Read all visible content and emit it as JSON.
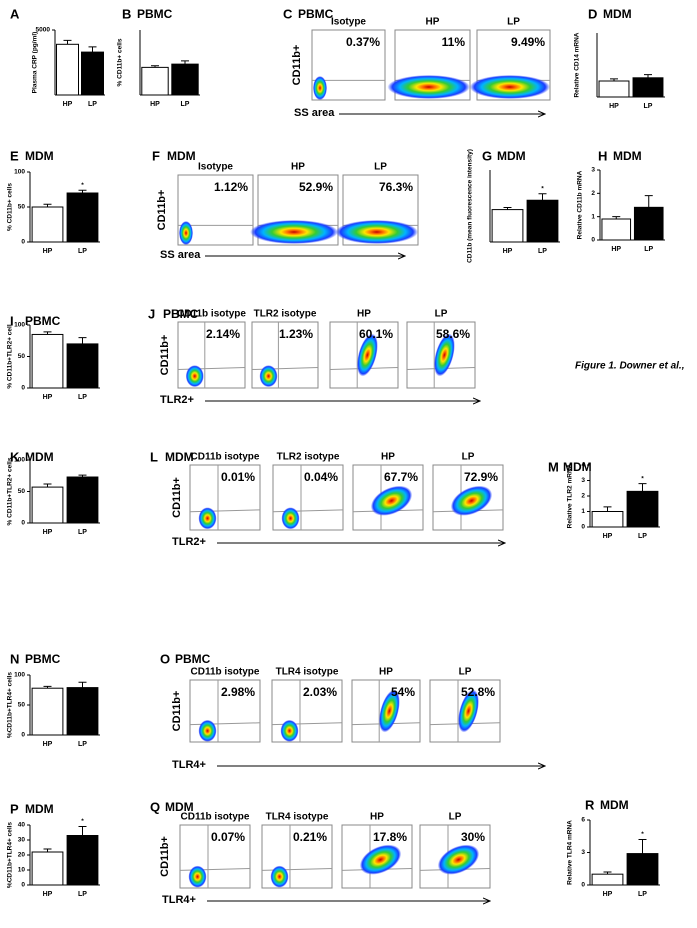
{
  "chart_data": [
    {
      "type": "bar",
      "letter": "A",
      "y_label": "Plasma CRP (pg/ml)",
      "categories": [
        "HP",
        "LP"
      ],
      "values": [
        3900,
        3300
      ],
      "errors": [
        300,
        400
      ],
      "colors": [
        "#ffffff",
        "#000000"
      ],
      "ylim": [
        0,
        5000
      ],
      "yticks": [
        5000
      ]
    },
    {
      "type": "bar",
      "letter": "B",
      "title": "PBMC",
      "y_label": "% CD11b+ cells",
      "categories": [
        "HP",
        "LP"
      ],
      "values": [
        17,
        19
      ],
      "errors": [
        1,
        2
      ],
      "colors": [
        "#ffffff",
        "#000000"
      ],
      "ylim": [
        0,
        40
      ]
    },
    {
      "type": "bar",
      "letter": "D",
      "title": "MDM",
      "y_label": "Relative CD14 mRNA",
      "categories": [
        "HP",
        "LP"
      ],
      "values": [
        1.5,
        1.8
      ],
      "errors": [
        0.2,
        0.3
      ],
      "colors": [
        "#ffffff",
        "#000000"
      ],
      "ylim": [
        0,
        6
      ]
    },
    {
      "type": "bar",
      "letter": "E",
      "title": "MDM",
      "y_label": "% CD11b+ cells",
      "categories": [
        "HP",
        "LP"
      ],
      "values": [
        50,
        70
      ],
      "errors": [
        4,
        4
      ],
      "colors": [
        "#ffffff",
        "#000000"
      ],
      "ylim": [
        0,
        100
      ],
      "yticks": [
        0,
        50,
        100
      ],
      "annotation": "*"
    },
    {
      "type": "bar",
      "letter": "G",
      "title": "MDM",
      "y_label": "CD11b (mean fluorescence intensity)",
      "categories": [
        "HP",
        "LP"
      ],
      "values": [
        45,
        58
      ],
      "errors": [
        3,
        9
      ],
      "colors": [
        "#ffffff",
        "#000000"
      ],
      "ylim": [
        0,
        100
      ],
      "annotation": "*"
    },
    {
      "type": "bar",
      "letter": "H",
      "title": "MDM",
      "y_label": "Relative CD11b mRNA",
      "categories": [
        "HP",
        "LP"
      ],
      "values": [
        0.9,
        1.4
      ],
      "errors": [
        0.1,
        0.5
      ],
      "colors": [
        "#ffffff",
        "#000000"
      ],
      "ylim": [
        0,
        3
      ],
      "yticks": [
        0,
        1,
        2,
        3
      ]
    },
    {
      "type": "bar",
      "letter": "I",
      "title": "PBMC",
      "y_label": "% CD11b+TLR2+ cell",
      "categories": [
        "HP",
        "LP"
      ],
      "values": [
        85,
        70
      ],
      "errors": [
        4,
        10
      ],
      "colors": [
        "#ffffff",
        "#000000"
      ],
      "ylim": [
        0,
        100
      ],
      "yticks": [
        0,
        50,
        100
      ]
    },
    {
      "type": "bar",
      "letter": "K",
      "title": "MDM",
      "y_label": "% CD11b+TLR2+ cells",
      "categories": [
        "HP",
        "LP"
      ],
      "values": [
        57,
        73
      ],
      "errors": [
        5,
        3
      ],
      "colors": [
        "#ffffff",
        "#000000"
      ],
      "ylim": [
        0,
        100
      ],
      "yticks": [
        0,
        50,
        100
      ]
    },
    {
      "type": "bar",
      "letter": "M",
      "title": "MDM",
      "y_label": "Relative TLR2 mRNA",
      "categories": [
        "HP",
        "LP"
      ],
      "values": [
        1.0,
        2.3
      ],
      "errors": [
        0.3,
        0.5
      ],
      "colors": [
        "#ffffff",
        "#000000"
      ],
      "ylim": [
        0,
        4
      ],
      "yticks": [
        0,
        1,
        2,
        3,
        4
      ],
      "annotation": "*"
    },
    {
      "type": "bar",
      "letter": "N",
      "title": "PBMC",
      "y_label": "%CD11b+TLR4+ cells",
      "categories": [
        "HP",
        "LP"
      ],
      "values": [
        78,
        79
      ],
      "errors": [
        3,
        9
      ],
      "colors": [
        "#ffffff",
        "#000000"
      ],
      "ylim": [
        0,
        100
      ],
      "yticks": [
        0,
        50,
        100
      ]
    },
    {
      "type": "bar",
      "letter": "P",
      "title": "MDM",
      "y_label": "%CD11b+TLR4+ cells",
      "categories": [
        "HP",
        "LP"
      ],
      "values": [
        22,
        33
      ],
      "errors": [
        2,
        6
      ],
      "colors": [
        "#ffffff",
        "#000000"
      ],
      "ylim": [
        0,
        40
      ],
      "yticks": [
        0,
        10,
        20,
        30,
        40
      ],
      "annotation": "*"
    },
    {
      "type": "bar",
      "letter": "R",
      "title": "MDM",
      "y_label": "Relative TLR4 mRNA",
      "categories": [
        "HP",
        "LP"
      ],
      "values": [
        1.0,
        2.9
      ],
      "errors": [
        0.2,
        1.3
      ],
      "colors": [
        "#ffffff",
        "#000000"
      ],
      "ylim": [
        0,
        6
      ],
      "yticks": [
        0,
        3,
        6
      ],
      "annotation": "*"
    }
  ],
  "flow_panels": [
    {
      "letter": "C",
      "title": "PBMC",
      "y_label": "CD11b+",
      "x_label": "SS area",
      "plots": [
        {
          "name": "Isotype",
          "percent": "0.37%"
        },
        {
          "name": "HP",
          "percent": "11%"
        },
        {
          "name": "LP",
          "percent": "9.49%"
        }
      ]
    },
    {
      "letter": "F",
      "title": "MDM",
      "y_label": "CD11b+",
      "x_label": "SS area",
      "plots": [
        {
          "name": "Isotype",
          "percent": "1.12%"
        },
        {
          "name": "HP",
          "percent": "52.9%"
        },
        {
          "name": "LP",
          "percent": "76.3%"
        }
      ]
    },
    {
      "letter": "J",
      "title": "PBMC",
      "y_label": "CD11b+",
      "x_label": "TLR2+",
      "plots": [
        {
          "name": "CD11b isotype",
          "percent": "2.14%"
        },
        {
          "name": "TLR2 isotype",
          "percent": "1.23%"
        },
        {
          "name": "HP",
          "percent": "60.1%"
        },
        {
          "name": "LP",
          "percent": "58.6%"
        }
      ]
    },
    {
      "letter": "L",
      "title": "MDM",
      "y_label": "CD11b+",
      "x_label": "TLR2+",
      "plots": [
        {
          "name": "CD11b isotype",
          "percent": "0.01%"
        },
        {
          "name": "TLR2 isotype",
          "percent": "0.04%"
        },
        {
          "name": "HP",
          "percent": "67.7%"
        },
        {
          "name": "LP",
          "percent": "72.9%"
        }
      ]
    },
    {
      "letter": "O",
      "title": "PBMC",
      "y_label": "CD11b+",
      "x_label": "TLR4+",
      "plots": [
        {
          "name": "CD11b isotype",
          "percent": "2.98%"
        },
        {
          "name": "TLR4 isotype",
          "percent": "2.03%"
        },
        {
          "name": "HP",
          "percent": "54%"
        },
        {
          "name": "LP",
          "percent": "52.8%"
        }
      ]
    },
    {
      "letter": "Q",
      "title": "MDM",
      "y_label": "CD11b+",
      "x_label": "TLR4+",
      "plots": [
        {
          "name": "CD11b isotype",
          "percent": "0.07%"
        },
        {
          "name": "TLR4 isotype",
          "percent": "0.21%"
        },
        {
          "name": "HP",
          "percent": "17.8%"
        },
        {
          "name": "LP",
          "percent": "30%"
        }
      ]
    }
  ],
  "caption": "Figure 1. Downer et al.,"
}
